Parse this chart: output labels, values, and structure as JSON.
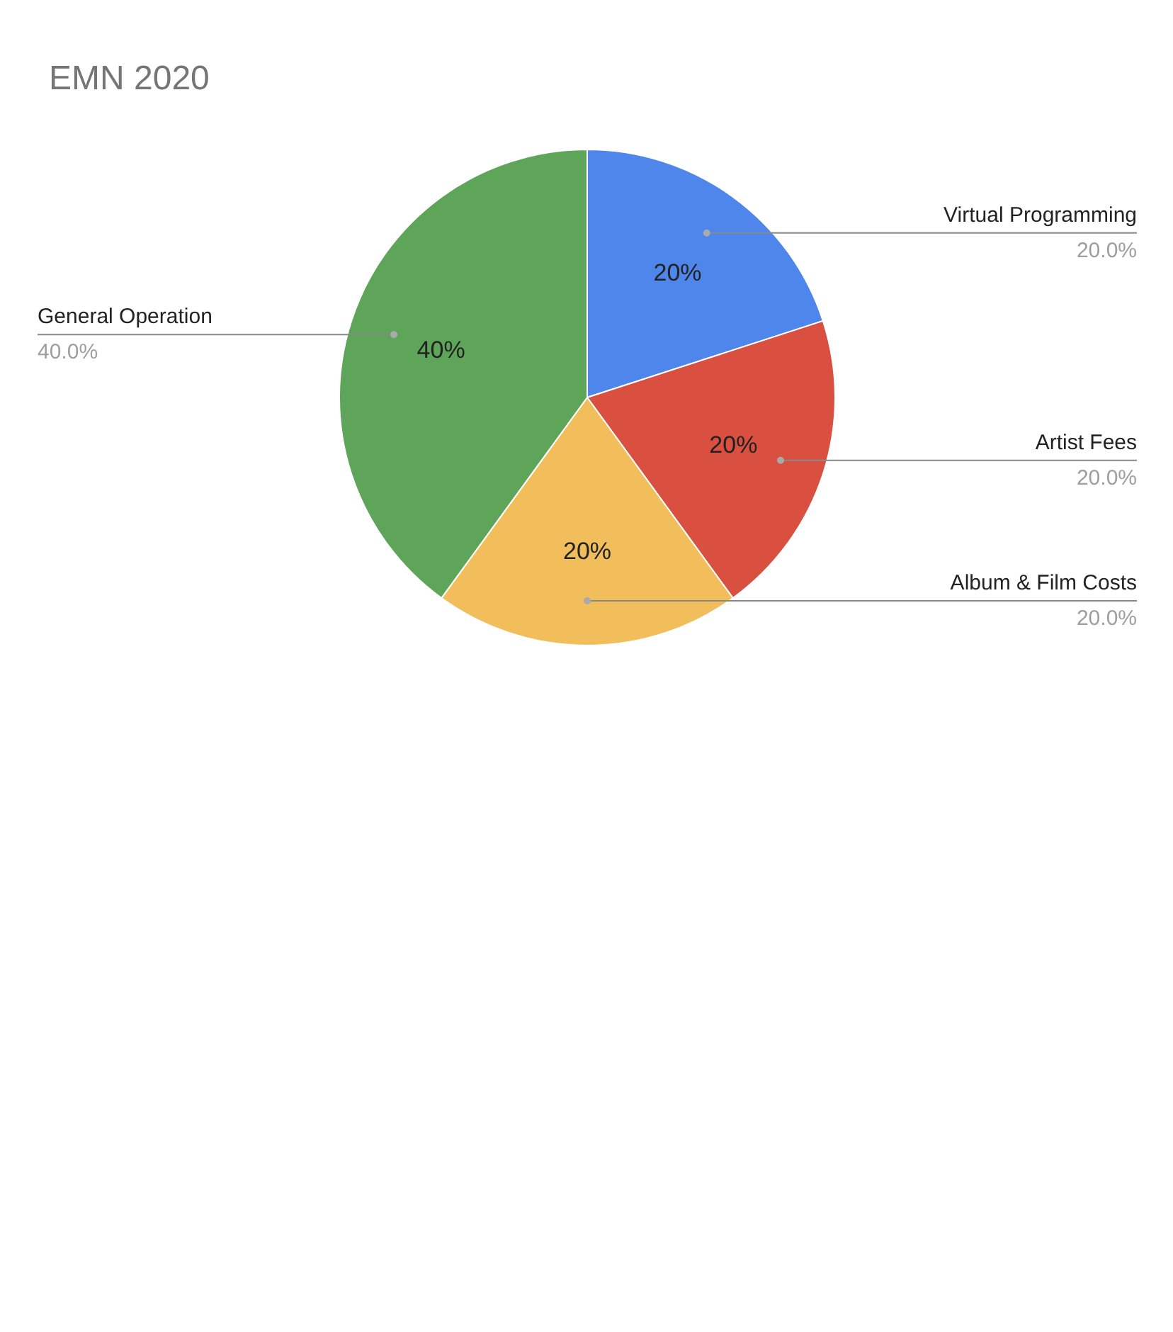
{
  "chart_data": {
    "type": "pie",
    "title": "EMN 2020",
    "categories": [
      "Virtual Programming",
      "Artist Fees",
      "Album & Film Costs",
      "General Operation"
    ],
    "values": [
      20,
      20,
      20,
      40
    ],
    "colors": [
      "#4f86ec",
      "#d95040",
      "#f1be5b",
      "#5ea55a"
    ],
    "value_labels": [
      "20%",
      "20%",
      "20%",
      "40%"
    ],
    "annotations": [
      "20.0%",
      "20.0%",
      "20.0%",
      "40.0%"
    ]
  }
}
